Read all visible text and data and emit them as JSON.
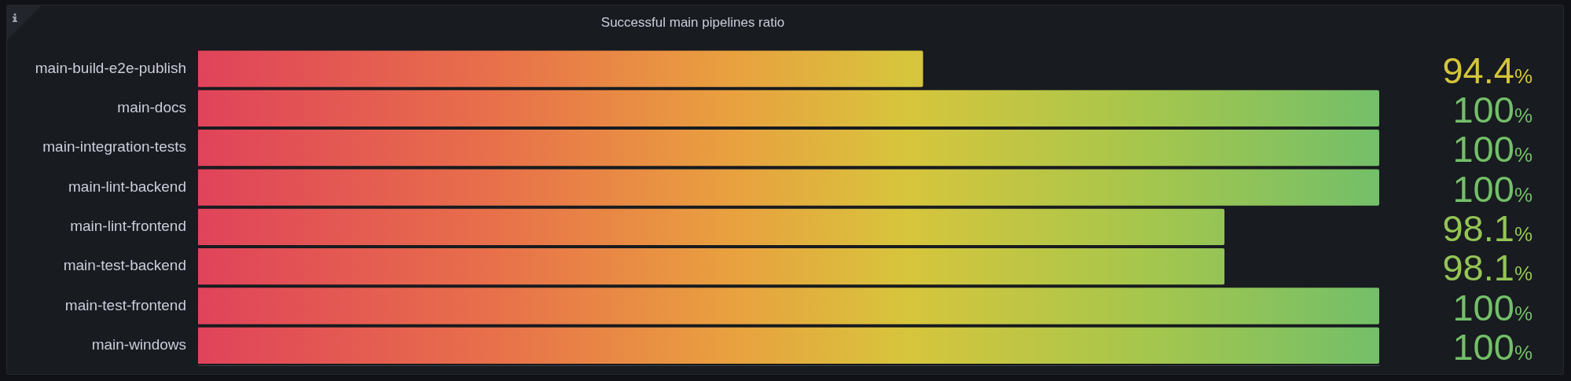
{
  "chart_data": {
    "type": "bar",
    "orientation": "horizontal",
    "title": "Successful main pipelines ratio",
    "categories": [
      "main-build-e2e-publish",
      "main-docs",
      "main-integration-tests",
      "main-lint-backend",
      "main-lint-frontend",
      "main-test-backend",
      "main-test-frontend",
      "main-windows"
    ],
    "values": [
      94.4,
      100,
      100,
      100,
      98.1,
      98.1,
      100,
      100
    ],
    "value_labels": [
      "94.4%",
      "100%",
      "100%",
      "100%",
      "98.1%",
      "98.1%",
      "100%",
      "100%"
    ],
    "xlim": [
      85.5,
      100
    ],
    "tick_labels": "y"
  }
}
